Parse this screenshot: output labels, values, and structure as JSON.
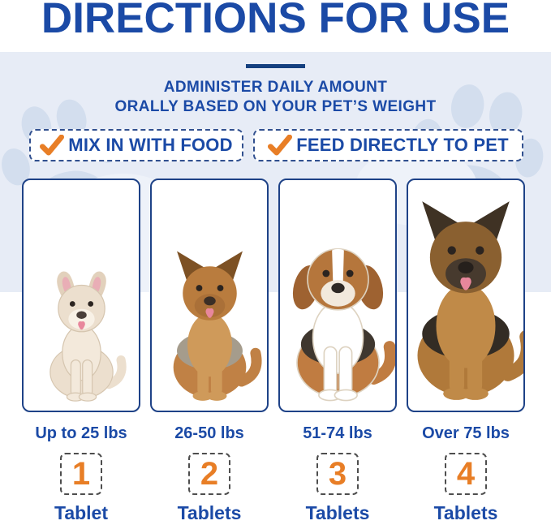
{
  "title": "DIRECTIONS FOR USE",
  "subtitle": {
    "line1": "ADMINISTER DAILY AMOUNT",
    "line2": "ORALLY BASED ON YOUR PET’S WEIGHT"
  },
  "feeding_options": [
    {
      "label": "MIX IN WITH FOOD",
      "icon": "checkmark-icon"
    },
    {
      "label": "FEED DIRECTLY TO PET",
      "icon": "checkmark-icon"
    }
  ],
  "dosage_columns": [
    {
      "image": "french-bulldog-image",
      "weight": "Up to 25 lbs",
      "count": "1",
      "unit": "Tablet"
    },
    {
      "image": "yorkshire-terrier-image",
      "weight": "26-50 lbs",
      "count": "2",
      "unit": "Tablets"
    },
    {
      "image": "beagle-image",
      "weight": "51-74 lbs",
      "count": "3",
      "unit": "Tablets"
    },
    {
      "image": "german-shepherd-image",
      "weight": "Over 75 lbs",
      "count": "4",
      "unit": "Tablets"
    }
  ],
  "decorations": {
    "watermark": "paw-print-watermark"
  },
  "colors": {
    "heading_blue": "#1b4aa6",
    "navy_accent": "#15407f",
    "orange": "#e87e26",
    "background_blue": "#e7ecf6",
    "paw_watermark": "#d3deee",
    "panel_border": "#1e4287",
    "number_box_dash": "#4e4e4e"
  }
}
